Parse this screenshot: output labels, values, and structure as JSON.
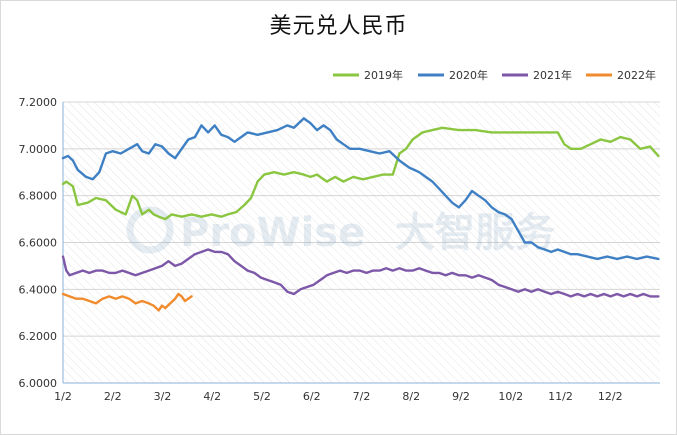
{
  "chart_data": {
    "type": "line",
    "title": "美元兑人民币",
    "ylim": [
      6.0,
      7.2
    ],
    "yticks": [
      "6.0000",
      "6.2000",
      "6.4000",
      "6.6000",
      "6.8000",
      "7.0000",
      "7.2000"
    ],
    "xticks": [
      "1/2",
      "2/2",
      "3/2",
      "4/2",
      "5/2",
      "6/2",
      "7/2",
      "8/2",
      "9/2",
      "10/2",
      "11/2",
      "12/2"
    ],
    "legend_position": "top-right",
    "grid": true,
    "series": [
      {
        "name": "2019年",
        "color": "#8ac640",
        "points": [
          [
            0,
            6.85
          ],
          [
            2,
            6.86
          ],
          [
            6,
            6.84
          ],
          [
            9,
            6.76
          ],
          [
            15,
            6.77
          ],
          [
            20,
            6.79
          ],
          [
            26,
            6.78
          ],
          [
            32,
            6.74
          ],
          [
            38,
            6.72
          ],
          [
            42,
            6.8
          ],
          [
            45,
            6.78
          ],
          [
            48,
            6.72
          ],
          [
            52,
            6.74
          ],
          [
            55,
            6.72
          ],
          [
            58,
            6.71
          ],
          [
            62,
            6.7
          ],
          [
            66,
            6.72
          ],
          [
            72,
            6.71
          ],
          [
            78,
            6.72
          ],
          [
            84,
            6.71
          ],
          [
            90,
            6.72
          ],
          [
            96,
            6.71
          ],
          [
            100,
            6.72
          ],
          [
            105,
            6.73
          ],
          [
            110,
            6.76
          ],
          [
            114,
            6.79
          ],
          [
            118,
            6.86
          ],
          [
            122,
            6.89
          ],
          [
            128,
            6.9
          ],
          [
            134,
            6.89
          ],
          [
            140,
            6.9
          ],
          [
            146,
            6.89
          ],
          [
            150,
            6.88
          ],
          [
            154,
            6.89
          ],
          [
            160,
            6.86
          ],
          [
            165,
            6.88
          ],
          [
            170,
            6.86
          ],
          [
            176,
            6.88
          ],
          [
            182,
            6.87
          ],
          [
            188,
            6.88
          ],
          [
            194,
            6.89
          ],
          [
            200,
            6.89
          ],
          [
            204,
            6.98
          ],
          [
            208,
            7.0
          ],
          [
            212,
            7.04
          ],
          [
            218,
            7.07
          ],
          [
            224,
            7.08
          ],
          [
            230,
            7.09
          ],
          [
            240,
            7.08
          ],
          [
            250,
            7.08
          ],
          [
            260,
            7.07
          ],
          [
            270,
            7.07
          ],
          [
            280,
            7.07
          ],
          [
            290,
            7.07
          ],
          [
            300,
            7.07
          ],
          [
            304,
            7.02
          ],
          [
            308,
            7.0
          ],
          [
            314,
            7.0
          ],
          [
            320,
            7.02
          ],
          [
            326,
            7.04
          ],
          [
            332,
            7.03
          ],
          [
            338,
            7.05
          ],
          [
            344,
            7.04
          ],
          [
            350,
            7.0
          ],
          [
            356,
            7.01
          ],
          [
            361,
            6.97
          ]
        ]
      },
      {
        "name": "2020年",
        "color": "#3f80c5",
        "points": [
          [
            0,
            6.96
          ],
          [
            3,
            6.97
          ],
          [
            6,
            6.95
          ],
          [
            9,
            6.91
          ],
          [
            14,
            6.88
          ],
          [
            18,
            6.87
          ],
          [
            22,
            6.9
          ],
          [
            26,
            6.98
          ],
          [
            30,
            6.99
          ],
          [
            35,
            6.98
          ],
          [
            40,
            7.0
          ],
          [
            45,
            7.02
          ],
          [
            48,
            6.99
          ],
          [
            52,
            6.98
          ],
          [
            56,
            7.02
          ],
          [
            60,
            7.01
          ],
          [
            64,
            6.98
          ],
          [
            68,
            6.96
          ],
          [
            72,
            7.0
          ],
          [
            76,
            7.04
          ],
          [
            80,
            7.05
          ],
          [
            84,
            7.1
          ],
          [
            88,
            7.07
          ],
          [
            92,
            7.1
          ],
          [
            96,
            7.06
          ],
          [
            100,
            7.05
          ],
          [
            104,
            7.03
          ],
          [
            108,
            7.05
          ],
          [
            112,
            7.07
          ],
          [
            118,
            7.06
          ],
          [
            124,
            7.07
          ],
          [
            130,
            7.08
          ],
          [
            136,
            7.1
          ],
          [
            140,
            7.09
          ],
          [
            146,
            7.13
          ],
          [
            150,
            7.11
          ],
          [
            154,
            7.08
          ],
          [
            158,
            7.1
          ],
          [
            162,
            7.08
          ],
          [
            166,
            7.04
          ],
          [
            170,
            7.02
          ],
          [
            174,
            7.0
          ],
          [
            180,
            7.0
          ],
          [
            186,
            6.99
          ],
          [
            192,
            6.98
          ],
          [
            198,
            6.99
          ],
          [
            204,
            6.95
          ],
          [
            210,
            6.92
          ],
          [
            216,
            6.9
          ],
          [
            220,
            6.88
          ],
          [
            224,
            6.86
          ],
          [
            228,
            6.83
          ],
          [
            232,
            6.8
          ],
          [
            236,
            6.77
          ],
          [
            240,
            6.75
          ],
          [
            244,
            6.78
          ],
          [
            248,
            6.82
          ],
          [
            252,
            6.8
          ],
          [
            256,
            6.78
          ],
          [
            260,
            6.75
          ],
          [
            264,
            6.73
          ],
          [
            268,
            6.72
          ],
          [
            272,
            6.7
          ],
          [
            276,
            6.65
          ],
          [
            280,
            6.6
          ],
          [
            284,
            6.6
          ],
          [
            288,
            6.58
          ],
          [
            292,
            6.57
          ],
          [
            296,
            6.56
          ],
          [
            300,
            6.57
          ],
          [
            304,
            6.56
          ],
          [
            308,
            6.55
          ],
          [
            312,
            6.55
          ],
          [
            318,
            6.54
          ],
          [
            324,
            6.53
          ],
          [
            330,
            6.54
          ],
          [
            336,
            6.53
          ],
          [
            342,
            6.54
          ],
          [
            348,
            6.53
          ],
          [
            354,
            6.54
          ],
          [
            361,
            6.53
          ]
        ]
      },
      {
        "name": "2021年",
        "color": "#7d57a8",
        "points": [
          [
            0,
            6.54
          ],
          [
            2,
            6.48
          ],
          [
            4,
            6.46
          ],
          [
            8,
            6.47
          ],
          [
            12,
            6.48
          ],
          [
            16,
            6.47
          ],
          [
            20,
            6.48
          ],
          [
            24,
            6.48
          ],
          [
            28,
            6.47
          ],
          [
            32,
            6.47
          ],
          [
            36,
            6.48
          ],
          [
            40,
            6.47
          ],
          [
            44,
            6.46
          ],
          [
            48,
            6.47
          ],
          [
            52,
            6.48
          ],
          [
            56,
            6.49
          ],
          [
            60,
            6.5
          ],
          [
            64,
            6.52
          ],
          [
            68,
            6.5
          ],
          [
            72,
            6.51
          ],
          [
            76,
            6.53
          ],
          [
            80,
            6.55
          ],
          [
            84,
            6.56
          ],
          [
            88,
            6.57
          ],
          [
            92,
            6.56
          ],
          [
            96,
            6.56
          ],
          [
            100,
            6.55
          ],
          [
            104,
            6.52
          ],
          [
            108,
            6.5
          ],
          [
            112,
            6.48
          ],
          [
            116,
            6.47
          ],
          [
            120,
            6.45
          ],
          [
            124,
            6.44
          ],
          [
            128,
            6.43
          ],
          [
            132,
            6.42
          ],
          [
            136,
            6.39
          ],
          [
            140,
            6.38
          ],
          [
            144,
            6.4
          ],
          [
            148,
            6.41
          ],
          [
            152,
            6.42
          ],
          [
            156,
            6.44
          ],
          [
            160,
            6.46
          ],
          [
            164,
            6.47
          ],
          [
            168,
            6.48
          ],
          [
            172,
            6.47
          ],
          [
            176,
            6.48
          ],
          [
            180,
            6.48
          ],
          [
            184,
            6.47
          ],
          [
            188,
            6.48
          ],
          [
            192,
            6.48
          ],
          [
            196,
            6.49
          ],
          [
            200,
            6.48
          ],
          [
            204,
            6.49
          ],
          [
            208,
            6.48
          ],
          [
            212,
            6.48
          ],
          [
            216,
            6.49
          ],
          [
            220,
            6.48
          ],
          [
            224,
            6.47
          ],
          [
            228,
            6.47
          ],
          [
            232,
            6.46
          ],
          [
            236,
            6.47
          ],
          [
            240,
            6.46
          ],
          [
            244,
            6.46
          ],
          [
            248,
            6.45
          ],
          [
            252,
            6.46
          ],
          [
            256,
            6.45
          ],
          [
            260,
            6.44
          ],
          [
            264,
            6.42
          ],
          [
            268,
            6.41
          ],
          [
            272,
            6.4
          ],
          [
            276,
            6.39
          ],
          [
            280,
            6.4
          ],
          [
            284,
            6.39
          ],
          [
            288,
            6.4
          ],
          [
            292,
            6.39
          ],
          [
            296,
            6.38
          ],
          [
            300,
            6.39
          ],
          [
            304,
            6.38
          ],
          [
            308,
            6.37
          ],
          [
            312,
            6.38
          ],
          [
            316,
            6.37
          ],
          [
            320,
            6.38
          ],
          [
            324,
            6.37
          ],
          [
            328,
            6.38
          ],
          [
            332,
            6.37
          ],
          [
            336,
            6.38
          ],
          [
            340,
            6.37
          ],
          [
            344,
            6.38
          ],
          [
            348,
            6.37
          ],
          [
            352,
            6.38
          ],
          [
            356,
            6.37
          ],
          [
            361,
            6.37
          ]
        ]
      },
      {
        "name": "2022年",
        "color": "#f08c2e",
        "points": [
          [
            0,
            6.38
          ],
          [
            4,
            6.37
          ],
          [
            8,
            6.36
          ],
          [
            12,
            6.36
          ],
          [
            16,
            6.35
          ],
          [
            20,
            6.34
          ],
          [
            24,
            6.36
          ],
          [
            28,
            6.37
          ],
          [
            32,
            6.36
          ],
          [
            36,
            6.37
          ],
          [
            40,
            6.36
          ],
          [
            44,
            6.34
          ],
          [
            48,
            6.35
          ],
          [
            52,
            6.34
          ],
          [
            55,
            6.33
          ],
          [
            58,
            6.31
          ],
          [
            60,
            6.33
          ],
          [
            62,
            6.32
          ],
          [
            65,
            6.34
          ],
          [
            68,
            6.36
          ],
          [
            70,
            6.38
          ],
          [
            72,
            6.37
          ],
          [
            74,
            6.35
          ],
          [
            76,
            6.36
          ],
          [
            78,
            6.37
          ]
        ]
      }
    ]
  }
}
